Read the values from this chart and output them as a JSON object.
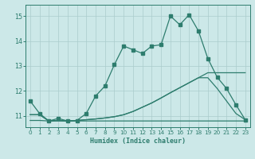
{
  "xlabel": "Humidex (Indice chaleur)",
  "bg_color": "#cce8e8",
  "grid_color": "#aacccc",
  "line_color": "#2e7d6e",
  "xlim": [
    -0.5,
    23.5
  ],
  "ylim": [
    10.55,
    15.45
  ],
  "yticks": [
    11,
    12,
    13,
    14,
    15
  ],
  "xticks": [
    0,
    1,
    2,
    3,
    4,
    5,
    6,
    7,
    8,
    9,
    10,
    11,
    12,
    13,
    14,
    15,
    16,
    17,
    18,
    19,
    20,
    21,
    22,
    23
  ],
  "line1_x": [
    0,
    1,
    2,
    3,
    4,
    5,
    6,
    7,
    8,
    9,
    10,
    11,
    12,
    13,
    14,
    15,
    16,
    17,
    18,
    19,
    20,
    21,
    22,
    23
  ],
  "line1_y": [
    11.6,
    11.1,
    10.8,
    10.9,
    10.8,
    10.82,
    11.1,
    11.8,
    12.2,
    13.05,
    13.8,
    13.65,
    13.5,
    13.8,
    13.85,
    15.0,
    14.65,
    15.05,
    14.4,
    13.3,
    12.55,
    12.1,
    11.45,
    10.85
  ],
  "line2_x": [
    0,
    1,
    2,
    3,
    4,
    5,
    6,
    7,
    8,
    9,
    10,
    11,
    12,
    13,
    14,
    15,
    16,
    17,
    18,
    19,
    20,
    21,
    22,
    23
  ],
  "line2_y": [
    11.05,
    11.05,
    10.8,
    10.82,
    10.8,
    10.82,
    10.85,
    10.88,
    10.92,
    10.97,
    11.05,
    11.18,
    11.35,
    11.52,
    11.72,
    11.93,
    12.13,
    12.33,
    12.53,
    12.73,
    12.73,
    12.73,
    12.73,
    12.73
  ],
  "line3_x": [
    0,
    1,
    2,
    3,
    4,
    5,
    6,
    7,
    8,
    9,
    10,
    11,
    12,
    13,
    14,
    15,
    16,
    17,
    18,
    19,
    20,
    21,
    22,
    23
  ],
  "line3_y": [
    11.05,
    11.05,
    10.8,
    10.82,
    10.8,
    10.82,
    10.85,
    10.88,
    10.92,
    10.97,
    11.05,
    11.18,
    11.35,
    11.52,
    11.72,
    11.93,
    12.13,
    12.33,
    12.53,
    12.53,
    12.1,
    11.6,
    11.1,
    10.85
  ],
  "line4_x": [
    0,
    1,
    2,
    3,
    4,
    5,
    6,
    7,
    8,
    9,
    10,
    11,
    12,
    13,
    14,
    15,
    16,
    17,
    18,
    19,
    20,
    21,
    22,
    23
  ],
  "line4_y": [
    10.82,
    10.82,
    10.8,
    10.8,
    10.8,
    10.8,
    10.8,
    10.8,
    10.8,
    10.8,
    10.8,
    10.8,
    10.8,
    10.8,
    10.8,
    10.8,
    10.8,
    10.8,
    10.8,
    10.8,
    10.8,
    10.8,
    10.8,
    10.8
  ]
}
